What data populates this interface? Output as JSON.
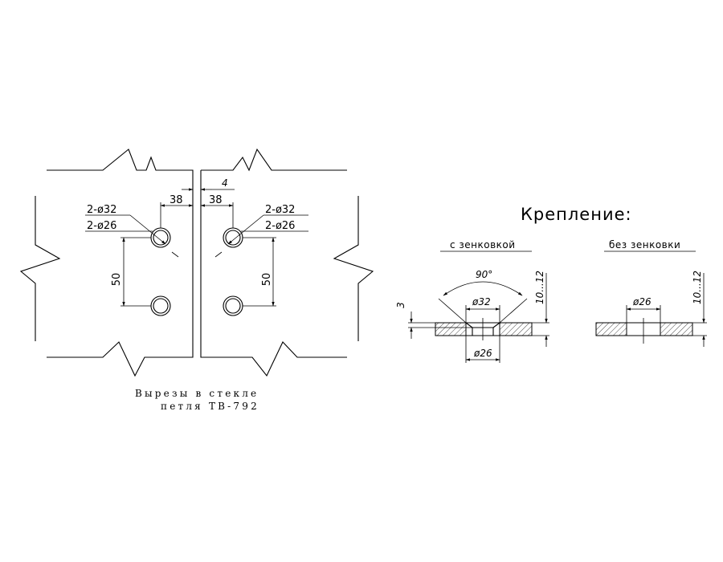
{
  "glass_cutouts": {
    "holes_left_label": "2-ø32",
    "holes_left_sublabel": "2-ø26",
    "holes_right_label": "2-ø32",
    "holes_right_sublabel": "2-ø26",
    "gap_dim": "4",
    "edge_dim_left": "38",
    "edge_dim_right": "38",
    "spacing_dim_left": "50",
    "spacing_dim_right": "50",
    "caption_line1": "Вырезы в стекле",
    "caption_line2": "петля ТВ-792"
  },
  "mounting": {
    "title": "Крепление:",
    "countersunk": {
      "label": "с зенковкой",
      "angle": "90°",
      "top_diameter": "ø32",
      "bottom_diameter": "ø26",
      "depth": "3",
      "thickness": "10...12"
    },
    "plain": {
      "label": "без зенковки",
      "diameter": "ø26",
      "thickness": "10...12"
    }
  }
}
